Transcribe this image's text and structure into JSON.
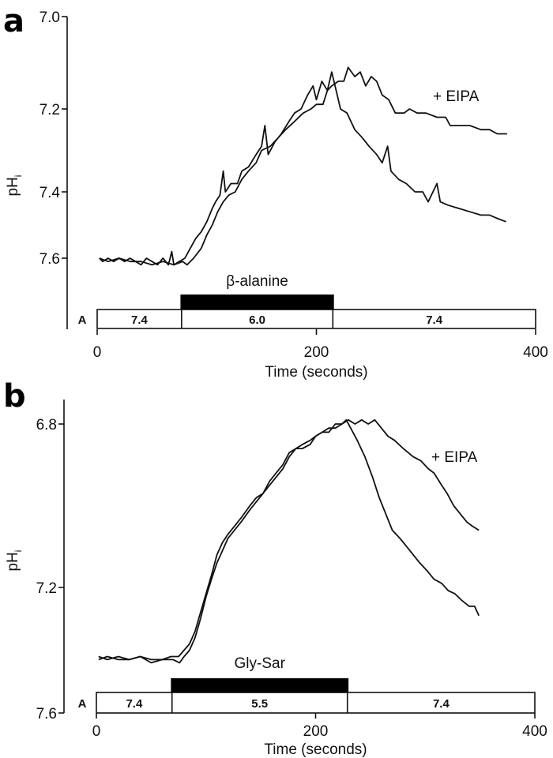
{
  "chart_data": [
    {
      "type": "line",
      "panel_label": "a",
      "xlabel": "Time (seconds)",
      "ylabel": "pH",
      "ylabel_sub": "i",
      "xlim": [
        0,
        400
      ],
      "x_ticks": [
        "0",
        "200",
        "400"
      ],
      "y_ticks": [
        "7.0",
        "7.2",
        "7.4",
        "7.6"
      ],
      "y_inverted": true,
      "grid": false,
      "treatment": {
        "label": "β-alanine",
        "start": 76,
        "end": 216
      },
      "solution_row": {
        "label": "A",
        "segments": [
          {
            "label": "7.4",
            "start": 0,
            "end": 77
          },
          {
            "label": "6.0",
            "start": 77,
            "end": 215
          },
          {
            "label": "7.4",
            "start": 215,
            "end": 400
          }
        ]
      },
      "annotation": "+ EIPA",
      "series": [
        {
          "points": [
            [
              2,
              7.6
            ],
            [
              5,
              7.61
            ],
            [
              10,
              7.6
            ],
            [
              15,
              7.61
            ],
            [
              20,
              7.6
            ],
            [
              25,
              7.61
            ],
            [
              30,
              7.6
            ],
            [
              35,
              7.61
            ],
            [
              40,
              7.62
            ],
            [
              45,
              7.6
            ],
            [
              50,
              7.61
            ],
            [
              55,
              7.62
            ],
            [
              60,
              7.6
            ],
            [
              65,
              7.62
            ],
            [
              68,
              7.58
            ],
            [
              70,
              7.62
            ],
            [
              75,
              7.61
            ],
            [
              80,
              7.6
            ],
            [
              85,
              7.57
            ],
            [
              90,
              7.54
            ],
            [
              95,
              7.52
            ],
            [
              100,
              7.49
            ],
            [
              105,
              7.45
            ],
            [
              108,
              7.43
            ],
            [
              112,
              7.41
            ],
            [
              115,
              7.35
            ],
            [
              117,
              7.4
            ],
            [
              122,
              7.38
            ],
            [
              128,
              7.38
            ],
            [
              132,
              7.35
            ],
            [
              138,
              7.34
            ],
            [
              145,
              7.31
            ],
            [
              150,
              7.29
            ],
            [
              153,
              7.24
            ],
            [
              156,
              7.31
            ],
            [
              162,
              7.28
            ],
            [
              168,
              7.26
            ],
            [
              175,
              7.23
            ],
            [
              180,
              7.21
            ],
            [
              186,
              7.2
            ],
            [
              192,
              7.17
            ],
            [
              197,
              7.15
            ],
            [
              200,
              7.18
            ],
            [
              205,
              7.14
            ],
            [
              210,
              7.16
            ],
            [
              214,
              7.12
            ],
            [
              218,
              7.16
            ],
            [
              222,
              7.2
            ],
            [
              228,
              7.21
            ],
            [
              235,
              7.25
            ],
            [
              242,
              7.27
            ],
            [
              248,
              7.29
            ],
            [
              255,
              7.31
            ],
            [
              260,
              7.33
            ],
            [
              265,
              7.29
            ],
            [
              268,
              7.35
            ],
            [
              275,
              7.37
            ],
            [
              282,
              7.38
            ],
            [
              290,
              7.4
            ],
            [
              297,
              7.4
            ],
            [
              302,
              7.43
            ],
            [
              310,
              7.38
            ],
            [
              313,
              7.43
            ],
            [
              320,
              7.44
            ],
            [
              330,
              7.45
            ],
            [
              340,
              7.46
            ],
            [
              350,
              7.47
            ],
            [
              358,
              7.47
            ],
            [
              365,
              7.48
            ],
            [
              373,
              7.49
            ]
          ]
        },
        {
          "name": "+ EIPA",
          "points": [
            [
              2,
              7.6
            ],
            [
              10,
              7.61
            ],
            [
              20,
              7.6
            ],
            [
              30,
              7.61
            ],
            [
              40,
              7.61
            ],
            [
              50,
              7.62
            ],
            [
              60,
              7.61
            ],
            [
              70,
              7.62
            ],
            [
              78,
              7.61
            ],
            [
              82,
              7.62
            ],
            [
              88,
              7.6
            ],
            [
              95,
              7.57
            ],
            [
              100,
              7.53
            ],
            [
              105,
              7.5
            ],
            [
              110,
              7.46
            ],
            [
              115,
              7.43
            ],
            [
              120,
              7.41
            ],
            [
              126,
              7.4
            ],
            [
              132,
              7.37
            ],
            [
              138,
              7.35
            ],
            [
              145,
              7.33
            ],
            [
              150,
              7.3
            ],
            [
              158,
              7.29
            ],
            [
              165,
              7.27
            ],
            [
              172,
              7.25
            ],
            [
              180,
              7.23
            ],
            [
              188,
              7.21
            ],
            [
              195,
              7.2
            ],
            [
              200,
              7.19
            ],
            [
              206,
              7.19
            ],
            [
              210,
              7.16
            ],
            [
              214,
              7.15
            ],
            [
              220,
              7.14
            ],
            [
              225,
              7.14
            ],
            [
              229,
              7.11
            ],
            [
              235,
              7.13
            ],
            [
              240,
              7.12
            ],
            [
              245,
              7.15
            ],
            [
              250,
              7.13
            ],
            [
              255,
              7.14
            ],
            [
              260,
              7.17
            ],
            [
              266,
              7.18
            ],
            [
              272,
              7.21
            ],
            [
              280,
              7.21
            ],
            [
              285,
              7.2
            ],
            [
              292,
              7.21
            ],
            [
              300,
              7.21
            ],
            [
              310,
              7.22
            ],
            [
              318,
              7.22
            ],
            [
              322,
              7.24
            ],
            [
              330,
              7.24
            ],
            [
              340,
              7.24
            ],
            [
              350,
              7.25
            ],
            [
              358,
              7.25
            ],
            [
              365,
              7.26
            ],
            [
              370,
              7.26
            ],
            [
              374,
              7.26
            ]
          ]
        }
      ]
    },
    {
      "type": "line",
      "panel_label": "b",
      "xlabel": "Time (seconds)",
      "ylabel": "pH",
      "ylabel_sub": "i",
      "xlim": [
        0,
        400
      ],
      "x_ticks": [
        "0",
        "200",
        "400"
      ],
      "y_ticks": [
        "6.8",
        "7.2",
        "7.6"
      ],
      "y_inverted": true,
      "grid": false,
      "treatment": {
        "label": "Gly-Sar",
        "start": 68,
        "end": 230
      },
      "solution_row": {
        "label": "A",
        "segments": [
          {
            "label": "7.4",
            "start": 0,
            "end": 69
          },
          {
            "label": "5.5",
            "start": 69,
            "end": 229
          },
          {
            "label": "7.4",
            "start": 229,
            "end": 400
          }
        ]
      },
      "annotation": "+ EIPA",
      "series": [
        {
          "points": [
            [
              2,
              7.42
            ],
            [
              10,
              7.43
            ],
            [
              20,
              7.42
            ],
            [
              30,
              7.43
            ],
            [
              40,
              7.42
            ],
            [
              50,
              7.43
            ],
            [
              60,
              7.43
            ],
            [
              68,
              7.42
            ],
            [
              75,
              7.42
            ],
            [
              80,
              7.4
            ],
            [
              85,
              7.38
            ],
            [
              90,
              7.34
            ],
            [
              95,
              7.28
            ],
            [
              100,
              7.22
            ],
            [
              105,
              7.17
            ],
            [
              110,
              7.12
            ],
            [
              115,
              7.09
            ],
            [
              120,
              7.07
            ],
            [
              126,
              7.05
            ],
            [
              132,
              7.03
            ],
            [
              140,
              7.0
            ],
            [
              146,
              6.98
            ],
            [
              152,
              6.97
            ],
            [
              158,
              6.95
            ],
            [
              164,
              6.93
            ],
            [
              170,
              6.91
            ],
            [
              176,
              6.88
            ],
            [
              182,
              6.86
            ],
            [
              188,
              6.85
            ],
            [
              195,
              6.84
            ],
            [
              200,
              6.83
            ],
            [
              206,
              6.82
            ],
            [
              212,
              6.82
            ],
            [
              218,
              6.8
            ],
            [
              224,
              6.8
            ],
            [
              228,
              6.79
            ],
            [
              232,
              6.81
            ],
            [
              238,
              6.84
            ],
            [
              245,
              6.88
            ],
            [
              252,
              6.93
            ],
            [
              258,
              6.98
            ],
            [
              264,
              7.02
            ],
            [
              270,
              7.06
            ],
            [
              277,
              7.08
            ],
            [
              283,
              7.1
            ],
            [
              289,
              7.12
            ],
            [
              295,
              7.14
            ],
            [
              302,
              7.16
            ],
            [
              308,
              7.18
            ],
            [
              315,
              7.19
            ],
            [
              321,
              7.21
            ],
            [
              327,
              7.22
            ],
            [
              333,
              7.24
            ],
            [
              340,
              7.26
            ],
            [
              345,
              7.26
            ],
            [
              349,
              7.29
            ]
          ]
        },
        {
          "name": "+ EIPA",
          "points": [
            [
              2,
              7.43
            ],
            [
              10,
              7.42
            ],
            [
              20,
              7.43
            ],
            [
              30,
              7.43
            ],
            [
              40,
              7.42
            ],
            [
              50,
              7.44
            ],
            [
              60,
              7.43
            ],
            [
              70,
              7.43
            ],
            [
              76,
              7.44
            ],
            [
              80,
              7.42
            ],
            [
              85,
              7.4
            ],
            [
              90,
              7.36
            ],
            [
              95,
              7.3
            ],
            [
              100,
              7.23
            ],
            [
              105,
              7.18
            ],
            [
              110,
              7.14
            ],
            [
              115,
              7.11
            ],
            [
              120,
              7.08
            ],
            [
              126,
              7.06
            ],
            [
              132,
              7.04
            ],
            [
              140,
              7.01
            ],
            [
              146,
              6.99
            ],
            [
              152,
              6.97
            ],
            [
              158,
              6.94
            ],
            [
              164,
              6.92
            ],
            [
              170,
              6.9
            ],
            [
              176,
              6.87
            ],
            [
              182,
              6.86
            ],
            [
              188,
              6.86
            ],
            [
              195,
              6.85
            ],
            [
              200,
              6.83
            ],
            [
              206,
              6.82
            ],
            [
              212,
              6.81
            ],
            [
              218,
              6.81
            ],
            [
              224,
              6.8
            ],
            [
              230,
              6.79
            ],
            [
              236,
              6.8
            ],
            [
              242,
              6.79
            ],
            [
              248,
              6.8
            ],
            [
              254,
              6.79
            ],
            [
              260,
              6.81
            ],
            [
              266,
              6.83
            ],
            [
              272,
              6.84
            ],
            [
              280,
              6.86
            ],
            [
              289,
              6.88
            ],
            [
              296,
              6.89
            ],
            [
              303,
              6.91
            ],
            [
              308,
              6.92
            ],
            [
              315,
              6.95
            ],
            [
              320,
              6.97
            ],
            [
              326,
              7.0
            ],
            [
              332,
              7.02
            ],
            [
              338,
              7.04
            ],
            [
              343,
              7.05
            ],
            [
              349,
              7.06
            ]
          ]
        }
      ]
    }
  ]
}
